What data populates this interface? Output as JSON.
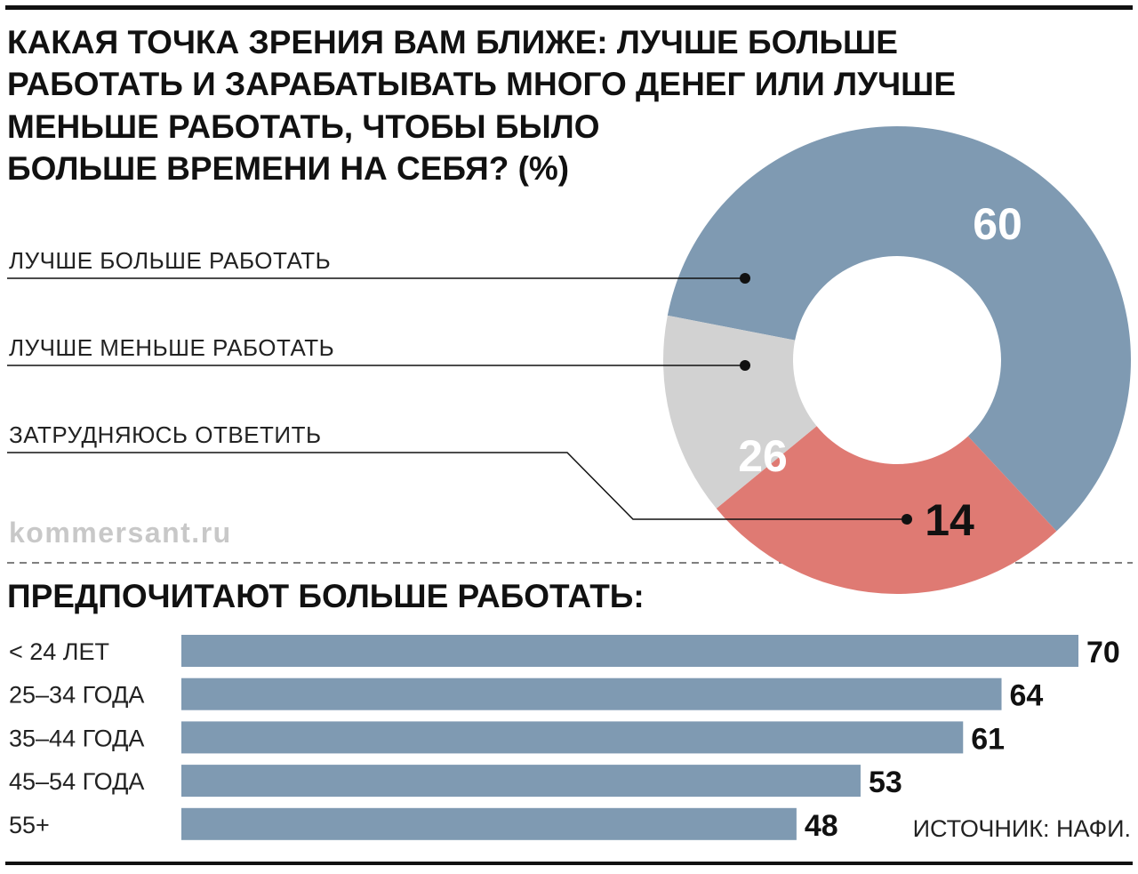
{
  "title_lines": [
    "КАКАЯ ТОЧКА ЗРЕНИЯ ВАМ БЛИЖЕ: ЛУЧШЕ БОЛЬШЕ",
    "РАБОТАТЬ И ЗАРАБАТЫВАТЬ МНОГО ДЕНЕГ ИЛИ ЛУЧШЕ",
    "МЕНЬШЕ РАБОТАТЬ, ЧТОБЫ БЫЛО",
    "БОЛЬШЕ ВРЕМЕНИ НА СЕБЯ? (%)"
  ],
  "watermark": "kommersant.ru",
  "subtitle": "ПРЕДПОЧИТАЮТ БОЛЬШЕ РАБОТАТЬ:",
  "source": "ИСТОЧНИК: НАФИ.",
  "chart_data": [
    {
      "type": "pie",
      "title": "КАКАЯ ТОЧКА ЗРЕНИЯ ВАМ БЛИЖЕ: ЛУЧШЕ БОЛЬШЕ РАБОТАТЬ И ЗАРАБАТЫВАТЬ МНОГО ДЕНЕГ ИЛИ ЛУЧШЕ МЕНЬШЕ РАБОТАТЬ, ЧТОБЫ БЫЛО БОЛЬШЕ ВРЕМЕНИ НА СЕБЯ? (%)",
      "donut": true,
      "categories": [
        "ЛУЧШЕ БОЛЬШЕ РАБОТАТЬ",
        "ЛУЧШЕ МЕНЬШЕ РАБОТАТЬ",
        "ЗАТРУДНЯЮСЬ ОТВЕТИТЬ"
      ],
      "values": [
        60,
        26,
        14
      ],
      "labels": [
        "60",
        "26",
        "14"
      ],
      "colors": [
        "#7f9ab2",
        "#df7a73",
        "#d2d2d2"
      ],
      "label_colors": [
        "#ffffff",
        "#ffffff",
        "#111111"
      ]
    },
    {
      "type": "bar",
      "orientation": "horizontal",
      "title": "ПРЕДПОЧИТАЮТ БОЛЬШЕ РАБОТАТЬ:",
      "categories": [
        "< 24 ЛЕТ",
        "25–34 ГОДА",
        "35–44 ГОДА",
        "45–54 ГОДА",
        "55+"
      ],
      "values": [
        70,
        64,
        61,
        53,
        48
      ],
      "labels": [
        "70",
        "64",
        "61",
        "53",
        "48"
      ],
      "color": "#7f9ab2",
      "xlim": [
        0,
        70
      ]
    }
  ]
}
